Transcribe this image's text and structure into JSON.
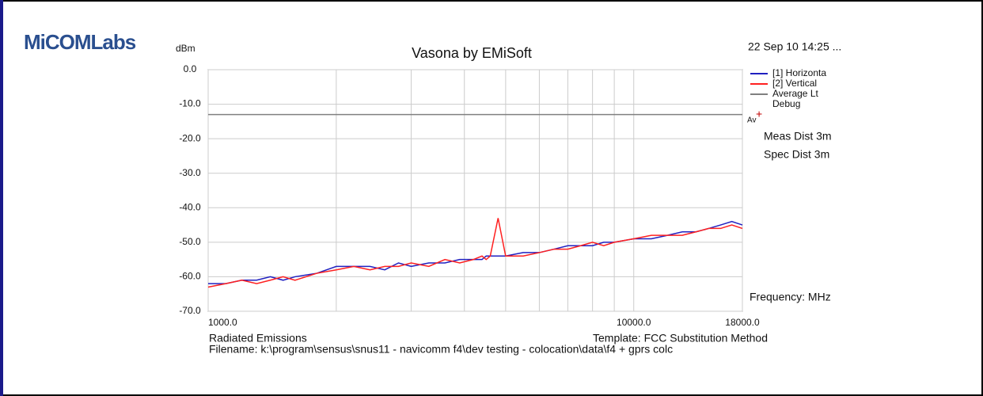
{
  "logo": "MiCOMLabs",
  "chart_data": {
    "type": "line",
    "title": "Vasona by EMiSoft",
    "timestamp": "22 Sep 10 14:25 ...",
    "y_label": "dBm",
    "log_x": true,
    "grid": true,
    "legend": "top-right",
    "xlim": [
      1000,
      18000
    ],
    "xticks": [
      {
        "value": 1000,
        "label": "1000.0"
      },
      {
        "value": 10000,
        "label": "10000.0"
      },
      {
        "value": 18000,
        "label": "18000.0"
      }
    ],
    "xminor": [
      2000,
      3000,
      4000,
      5000,
      6000,
      7000,
      8000,
      9000
    ],
    "ylim": [
      -70,
      0
    ],
    "yticks": [
      {
        "value": -70,
        "label": "-70.0"
      },
      {
        "value": -60,
        "label": "-60.0"
      },
      {
        "value": -50,
        "label": "-50.0"
      },
      {
        "value": -40,
        "label": "-40.0"
      },
      {
        "value": -30,
        "label": "-30.0"
      },
      {
        "value": -20,
        "label": "-20.0"
      },
      {
        "value": -10,
        "label": "-10.0"
      },
      {
        "value": 0,
        "label": "0.0"
      }
    ],
    "x": [
      1000,
      1100,
      1200,
      1300,
      1400,
      1500,
      1600,
      1800,
      2000,
      2200,
      2400,
      2600,
      2800,
      3000,
      3300,
      3600,
      3900,
      4200,
      4400,
      4500,
      4600,
      4800,
      5000,
      5500,
      6000,
      6500,
      7000,
      7500,
      8000,
      8500,
      9000,
      10000,
      11000,
      12000,
      13000,
      14000,
      15000,
      16000,
      17000,
      18000
    ],
    "series": [
      {
        "name": "[1] Horizonta",
        "color": "#2020c0",
        "values": [
          -62,
          -62,
          -61,
          -61,
          -60,
          -61,
          -60,
          -59,
          -57,
          -57,
          -57,
          -58,
          -56,
          -57,
          -56,
          -56,
          -55,
          -55,
          -55,
          -54,
          -54,
          -54,
          -54,
          -53,
          -53,
          -52,
          -51,
          -51,
          -51,
          -50,
          -50,
          -49,
          -49,
          -48,
          -47,
          -47,
          -46,
          -45,
          -44,
          -45
        ]
      },
      {
        "name": "[2] Vertical",
        "color": "#ff2020",
        "values": [
          -63,
          -62,
          -61,
          -62,
          -61,
          -60,
          -61,
          -59,
          -58,
          -57,
          -58,
          -57,
          -57,
          -56,
          -57,
          -55,
          -56,
          -55,
          -54,
          -55,
          -54,
          -43,
          -54,
          -54,
          -53,
          -52,
          -52,
          -51,
          -50,
          -51,
          -50,
          -49,
          -48,
          -48,
          -48,
          -47,
          -46,
          -46,
          -45,
          -46
        ]
      }
    ],
    "limit": {
      "name": "Average Lt",
      "color": "#808080",
      "value": -13,
      "label": "Av"
    },
    "debug": {
      "name": "Debug",
      "color": "#c00000"
    },
    "annotations": [
      "Meas Dist 3m",
      "Spec Dist 3m",
      "Frequency: MHz",
      "Radiated Emissions",
      "Template: FCC Substitution Method",
      "Filename: k:\\program\\sensus\\snus11 - navicomm f4\\dev testing - colocation\\data\\f4 + gprs colc"
    ]
  }
}
